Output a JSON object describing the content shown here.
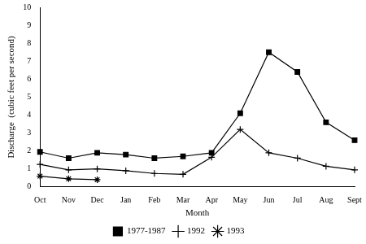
{
  "chart_data": {
    "type": "line",
    "x_label": "Month",
    "y_label": "Discharge  (cubic feet per second)",
    "categories": [
      "Oct",
      "Nov",
      "Dec",
      "Jan",
      "Feb",
      "Mar",
      "Apr",
      "May",
      "Jun",
      "Jul",
      "Aug",
      "Sept"
    ],
    "series": [
      {
        "name": "1977-1987",
        "color": "#000000",
        "marker": "square",
        "line_style": "solid",
        "values": [
          1.95,
          1.6,
          1.9,
          1.8,
          1.6,
          1.7,
          1.9,
          4.1,
          7.5,
          6.4,
          3.6,
          2.6
        ]
      },
      {
        "name": "1992",
        "color": "#000000",
        "marker": "plus",
        "line_style": "solid",
        "values": [
          1.25,
          0.95,
          1.0,
          0.9,
          0.75,
          0.7,
          1.65,
          3.2,
          1.9,
          1.6,
          1.15,
          0.95
        ]
      },
      {
        "name": "1993",
        "color": "#000000",
        "marker": "asterisk",
        "line_style": "solid",
        "values": [
          0.6,
          0.45,
          0.4,
          null,
          null,
          null,
          null,
          null,
          null,
          null,
          null,
          null
        ]
      }
    ],
    "ylim": [
      0,
      10
    ],
    "yticks": [
      0,
      1,
      2,
      3,
      4,
      5,
      6,
      7,
      8,
      9,
      10
    ],
    "grid": false,
    "legend": "bottom"
  }
}
